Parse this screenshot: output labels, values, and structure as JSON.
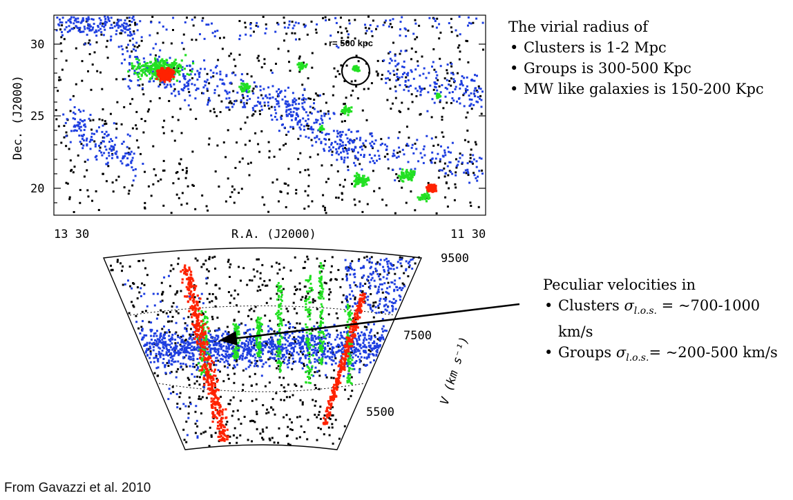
{
  "top_plot": {
    "y_axis_label": "Dec. (J2000)",
    "y_ticks": [
      "30",
      "25",
      "20"
    ],
    "x_ticks": [
      "13 30",
      "11 30"
    ],
    "x_axis_label": "R.A. (J2000)",
    "circle_label": "r= 500 kpc"
  },
  "wedge_plot": {
    "velocity_ticks": [
      "9500",
      "7500",
      "5500"
    ],
    "velocity_axis_label": "V (km s⁻¹)"
  },
  "virial_note": {
    "heading": "The virial radius of",
    "items": [
      "Clusters is 1-2 Mpc",
      "Groups is 300-500 Kpc",
      "MW like galaxies is 150-200 Kpc"
    ]
  },
  "velocity_note": {
    "heading": "Peculiar velocities in",
    "items": [
      {
        "prefix": "Clusters ",
        "symbol": "σ",
        "subscript": "l.o.s.",
        "suffix": " = ~700-1000 km/s"
      },
      {
        "prefix": "Groups ",
        "symbol": "σ",
        "subscript": "l.o.s.",
        "suffix": "= ~200-500 km/s"
      }
    ]
  },
  "credit": "From Gavazzi et al. 2010",
  "colors": {
    "field": "#000000",
    "filament": "#1f3fe0",
    "group": "#22e022",
    "cluster": "#ff2200"
  }
}
